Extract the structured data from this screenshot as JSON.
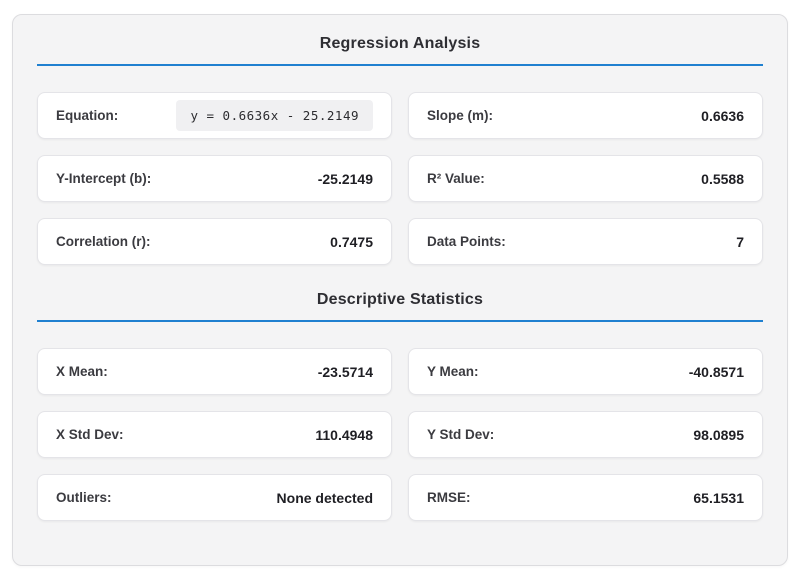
{
  "theme": {
    "accent_color": "#2080d0",
    "panel_background": "#f4f4f5",
    "card_background": "#ffffff"
  },
  "panel": {
    "sections": [
      {
        "title": "Regression Analysis",
        "stats": [
          {
            "label": "Equation:",
            "value": "y = 0.6636x - 25.2149",
            "mono": true
          },
          {
            "label": "Slope (m):",
            "value": "0.6636"
          },
          {
            "label": "Y-Intercept (b):",
            "value": "-25.2149"
          },
          {
            "label": "R² Value:",
            "value": "0.5588"
          },
          {
            "label": "Correlation (r):",
            "value": "0.7475"
          },
          {
            "label": "Data Points:",
            "value": "7"
          }
        ]
      },
      {
        "title": "Descriptive Statistics",
        "stats": [
          {
            "label": "X Mean:",
            "value": "-23.5714"
          },
          {
            "label": "Y Mean:",
            "value": "-40.8571"
          },
          {
            "label": "X Std Dev:",
            "value": "110.4948"
          },
          {
            "label": "Y Std Dev:",
            "value": "98.0895"
          },
          {
            "label": "Outliers:",
            "value": "None detected"
          },
          {
            "label": "RMSE:",
            "value": "65.1531"
          }
        ]
      }
    ]
  }
}
